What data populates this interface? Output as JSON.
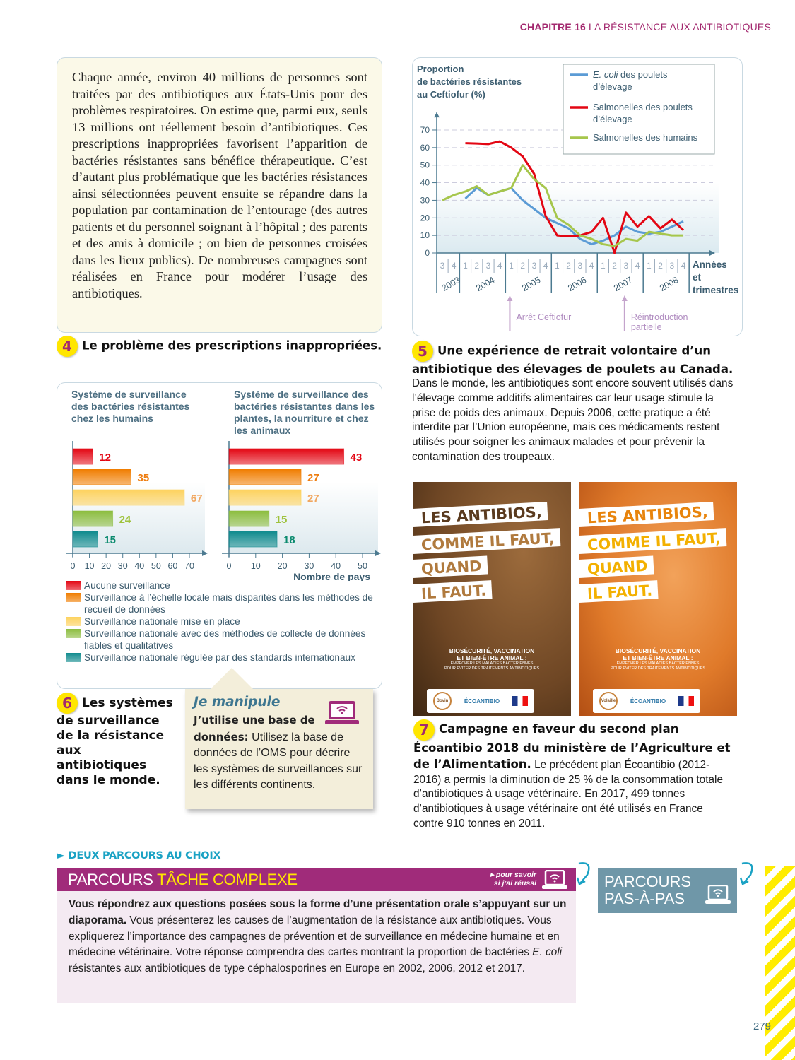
{
  "header": {
    "chapter": "CHAPITRE 16",
    "title": "LA RÉSISTANCE AUX ANTIBIOTIQUES"
  },
  "doc4": {
    "number": "4",
    "text": "Chaque année, environ 40 millions de personnes sont traitées par des antibiotiques aux États-Unis pour des problèmes respiratoires. On estime que, parmi eux, seuls 13 millions ont réellement besoin d’antibiotiques. Ces prescriptions inappropriées favorisent l’apparition de bactéries résistantes sans bénéfice thérapeutique. C’est d’autant plus problématique que les bactéries résistances ainsi sélectionnées peuvent ensuite se répandre dans la population par contamination de l’entourage (des autres patients et du personnel soignant à l’hôpital ; des parents et des amis à domicile ; ou bien de personnes croisées dans les lieux publics). De nombreuses campagnes sont réalisées en France pour modérer l’usage des antibiotiques.",
    "caption": "Le problème des prescriptions inappropriées."
  },
  "doc5": {
    "number": "5",
    "caption_title": "Une expérience de retrait volontaire d’un antibiotique des élevages de poulets au Canada.",
    "caption_body": "Dans le monde, les antibiotiques sont encore souvent utilisés dans l’élevage comme additifs alimentaires car leur usage stimule la prise de poids des animaux. Depuis 2006, cette pratique a été interdite par l’Union européenne, mais ces médicaments restent utilisés pour soigner les animaux malades et pour prévenir la contamination des troupeaux."
  },
  "doc6": {
    "number": "6",
    "caption": "Les systèmes de surveillance de la résistance aux antibiotiques dans le monde."
  },
  "manipule": {
    "title": "Je manipule",
    "bold": "J’utilise une base de données:",
    "text": " Utilisez la base de données de l’OMS pour décrire les systèmes de surveillances sur les différents continents.",
    "icon": "laptop-wifi-icon"
  },
  "doc7": {
    "number": "7",
    "caption_title": "Campagne en faveur du second plan Écoantibio 2018 du ministère de l’Agriculture et de l’Alimentation.",
    "caption_body": " Le précédent plan Écoantibio (2012-2016) a permis la diminution de 25 % de la consommation totale d’antibiotiques à usage vétérinaire. En 2017, 499 tonnes d’antibiotiques à usage vétérinaire ont été utilisés en France contre 910 tonnes en 2011."
  },
  "posters": [
    {
      "lines": [
        "LES ANTIBIOS,",
        "COMME IL FAUT,",
        "QUAND",
        "IL FAUT."
      ],
      "sub1": "BIOSÉCURITÉ, VACCINATION",
      "sub2": "ET BIEN-ÊTRE ANIMAL :",
      "sub3": "EMPÊCHER LES MALADIES BACTÉRIENNES",
      "sub4": "POUR ÉVITER DES TRAITEMENTS ANTIBIOTIQUES",
      "logo": "ÉCOANTIBIO",
      "badge": "Bovin",
      "color1": "#5a3a1e",
      "color2": "#b07a3e"
    },
    {
      "lines": [
        "LES ANTIBIOS,",
        "COMME IL FAUT,",
        "QUAND",
        "IL FAUT."
      ],
      "sub1": "BIOSÉCURITÉ, VACCINATION",
      "sub2": "ET BIEN-ÊTRE ANIMAL :",
      "sub3": "EMPÊCHER LES MALADIES BACTÉRIENNES",
      "sub4": "POUR ÉVITER DES TRAITEMENTS ANTIBIOTIQUES",
      "logo": "ÉCOANTIBIO",
      "badge": "Volaille",
      "color1": "#e8840c",
      "color2": "#f3b000"
    }
  ],
  "parcours": {
    "heading": "DEUX PARCOURS AU CHOIX",
    "tc_word1": "PARCOURS",
    "tc_word2": "TÂCHE COMPLEXE",
    "savoir1": "pour savoir",
    "savoir2": "si j’ai réussi",
    "tc_bold": "Vous répondrez aux questions posées sous la forme d’une présentation orale s’appuyant sur un diaporama.",
    "tc_text1": " Vous présenterez les causes de l’augmentation de la résistance aux antibiotiques. Vous expliquerez l’importance des campagnes de prévention et de surveillance en médecine humaine et en médecine vétérinaire. Votre réponse comprendra des cartes montrant la proportion de bactéries ",
    "tc_italic": "E. coli",
    "tc_text2": " résistantes aux antibiotiques de type céphalosporines en Europe en 2002, 2006, 2012 et 2017.",
    "pap1": "PARCOURS",
    "pap2": "PAS-À-PAS"
  },
  "page_number": "279",
  "chart_data": [
    {
      "type": "line",
      "ylabel": "Proportion de bactéries résistantes au Ceftiofur (%)",
      "xlabel": "Années et trimestres",
      "ylim": [
        0,
        70
      ],
      "yticks": [
        0,
        10,
        20,
        30,
        40,
        50,
        60,
        70
      ],
      "quarters": [
        "3",
        "4",
        "1",
        "2",
        "3",
        "4",
        "1",
        "2",
        "3",
        "4",
        "1",
        "2",
        "3",
        "4",
        "1",
        "2",
        "3",
        "4",
        "1",
        "2",
        "3",
        "4"
      ],
      "years": [
        {
          "label": "2003",
          "start": 0,
          "end": 1
        },
        {
          "label": "2004",
          "start": 2,
          "end": 5
        },
        {
          "label": "2005",
          "start": 6,
          "end": 9
        },
        {
          "label": "2006",
          "start": 10,
          "end": 13
        },
        {
          "label": "2007",
          "start": 14,
          "end": 17
        },
        {
          "label": "2008",
          "start": 18,
          "end": 21
        }
      ],
      "series": [
        {
          "name_italic": "E. coli",
          "name": " des poulets d’élevage",
          "color": "#5b9bd5",
          "values": [
            null,
            null,
            31,
            37,
            33,
            35,
            37,
            30,
            25,
            20,
            17,
            14,
            8,
            5,
            7,
            10,
            15,
            12,
            11,
            12,
            15,
            18
          ]
        },
        {
          "name": "Salmonelles des poulets d’élevage",
          "color": "#e30613",
          "values": [
            null,
            null,
            62.5,
            62.3,
            62,
            63.5,
            60,
            55,
            45,
            21,
            10,
            9.5,
            10,
            12,
            20,
            0,
            23,
            15,
            21,
            14,
            19,
            13
          ]
        },
        {
          "name": "Salmonelles des humains",
          "color": "#a6c64c",
          "values": [
            30,
            33,
            35,
            38,
            33,
            35,
            37,
            50,
            42,
            37,
            20,
            16,
            10,
            8,
            5,
            4,
            8,
            7,
            12,
            11,
            10,
            10
          ]
        }
      ],
      "annotations": [
        {
          "label": "Arrêt Ceftiofur",
          "at": 6
        },
        {
          "label": "Réintroduction partielle",
          "at": 16
        }
      ],
      "legend": "top-right",
      "grid": true
    },
    {
      "type": "bar",
      "orientation": "horizontal",
      "title": "Système de surveillance des bactéries résistantes chez les humains",
      "xlim": [
        0,
        70
      ],
      "xticks": [
        0,
        10,
        20,
        30,
        40,
        50,
        60,
        70
      ],
      "values": [
        12,
        35,
        67,
        24,
        15
      ]
    },
    {
      "type": "bar",
      "orientation": "horizontal",
      "title": "Système de surveillance des bactéries résistantes dans les plantes, la nourriture et chez les animaux",
      "xlabel": "Nombre de pays",
      "xlim": [
        0,
        50
      ],
      "xticks": [
        0,
        10,
        20,
        30,
        40,
        50
      ],
      "values": [
        43,
        27,
        27,
        15,
        18
      ]
    }
  ],
  "bar_legend": [
    {
      "label": "Aucune surveillance",
      "color": "#e30613",
      "text_color": "#e30613"
    },
    {
      "label": "Surveillance à l’échelle locale mais disparités dans les méthodes de recueil de données",
      "color": "#f07d00",
      "text_color": "#ee7d10"
    },
    {
      "label": "Surveillance nationale mise en place",
      "color": "#fdd25e",
      "text_color": "#f1a760"
    },
    {
      "label": "Surveillance nationale avec des méthodes de collecte de données fiables et qualitatives",
      "color": "#8cbd3f",
      "text_color": "#9ec23c"
    },
    {
      "label": "Surveillance nationale régulée par des standards internationaux",
      "color": "#108b8e",
      "text_color": "#0b8a6e"
    }
  ]
}
